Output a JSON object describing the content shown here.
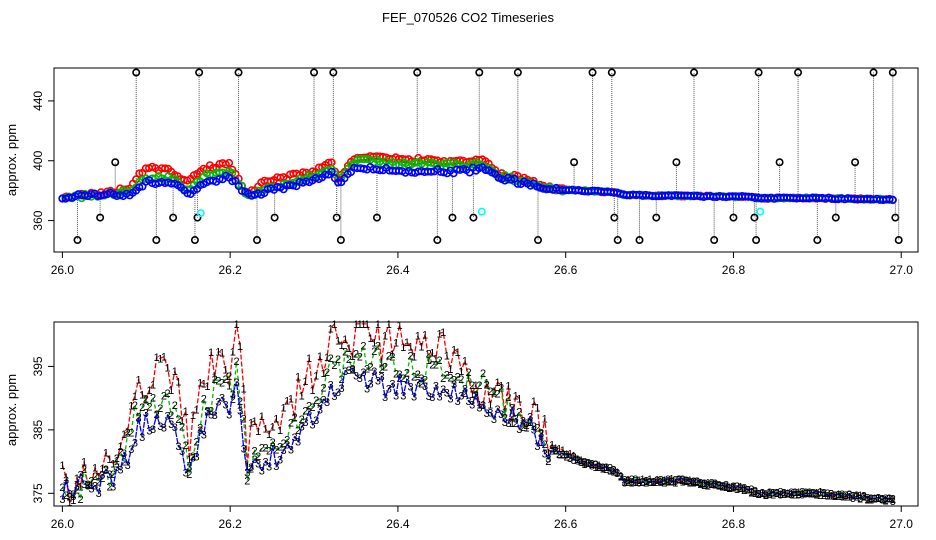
{
  "title": "FEF_070526  CO2 Timeseries",
  "colors": {
    "c1": "#ff0000",
    "c2": "#00bb00",
    "c3": "#0000ff",
    "ref": "#000000",
    "flag": "#00ffff",
    "grid": "#888888"
  },
  "chart_data": [
    {
      "type": "scatter",
      "title": "FEF_070526  CO2 Timeseries",
      "xlabel": "",
      "ylabel": "approx. ppm",
      "xlim": [
        25.99,
        27.02
      ],
      "ylim": [
        339,
        462
      ],
      "xticks": [
        "26.0",
        "26.2",
        "26.4",
        "26.6",
        "26.8",
        "27.0"
      ],
      "yticks": [
        "360",
        "400",
        "440"
      ],
      "anchors": {
        "x": [
          26.0,
          26.05,
          26.08,
          26.1,
          26.13,
          26.15,
          26.17,
          26.2,
          26.22,
          26.24,
          26.3,
          26.32,
          26.33,
          26.35,
          26.4,
          26.45,
          26.48,
          26.5,
          26.52,
          26.55,
          26.58,
          26.62,
          26.66,
          26.67,
          26.8,
          26.82,
          26.83,
          26.9,
          26.99
        ],
        "c1": [
          376,
          378,
          382,
          396,
          393,
          386,
          395,
          398,
          378,
          386,
          393,
          399,
          388,
          403,
          401,
          400,
          400,
          401,
          391,
          388,
          382,
          380,
          379,
          377,
          376,
          376,
          375,
          375,
          374
        ],
        "c2": [
          376,
          377,
          380,
          389,
          388,
          380,
          390,
          393,
          377,
          380,
          390,
          396,
          386,
          401,
          398,
          398,
          397,
          398,
          390,
          386,
          381,
          380,
          379,
          377,
          376,
          376,
          375,
          375,
          374
        ],
        "c3": [
          376,
          377,
          378,
          386,
          385,
          378,
          386,
          389,
          377,
          379,
          387,
          392,
          385,
          396,
          393,
          393,
          393,
          395,
          389,
          385,
          381,
          380,
          379,
          377,
          376,
          376,
          375,
          375,
          374
        ]
      },
      "ref_spikes": [
        {
          "x": 26.005,
          "high": 376,
          "low": 376
        },
        {
          "x": 26.018,
          "high": 347,
          "low": 347
        },
        {
          "x": 26.045,
          "high": 362,
          "low": 362
        },
        {
          "x": 26.063,
          "high": 399,
          "low": 399
        },
        {
          "x": 26.088,
          "high": 459,
          "low": 459
        },
        {
          "x": 26.112,
          "high": 347,
          "low": 347
        },
        {
          "x": 26.132,
          "high": 362,
          "low": 362
        },
        {
          "x": 26.158,
          "high": 347,
          "low": 347
        },
        {
          "x": 26.161,
          "high": 362,
          "low": 362
        },
        {
          "x": 26.163,
          "high": 459,
          "low": 459
        },
        {
          "x": 26.21,
          "high": 459,
          "low": 459
        },
        {
          "x": 26.232,
          "high": 347,
          "low": 347
        },
        {
          "x": 26.253,
          "high": 362,
          "low": 362
        },
        {
          "x": 26.3,
          "high": 459,
          "low": 459
        },
        {
          "x": 26.323,
          "high": 459,
          "low": 459
        },
        {
          "x": 26.327,
          "high": 362,
          "low": 362
        },
        {
          "x": 26.332,
          "high": 347,
          "low": 347
        },
        {
          "x": 26.375,
          "high": 362,
          "low": 362
        },
        {
          "x": 26.423,
          "high": 459,
          "low": 459
        },
        {
          "x": 26.447,
          "high": 347,
          "low": 347
        },
        {
          "x": 26.465,
          "high": 362,
          "low": 362
        },
        {
          "x": 26.49,
          "high": 362,
          "low": 362
        },
        {
          "x": 26.497,
          "high": 459,
          "low": 459
        },
        {
          "x": 26.543,
          "high": 459,
          "low": 459
        },
        {
          "x": 26.567,
          "high": 347,
          "low": 347
        },
        {
          "x": 26.61,
          "high": 399,
          "low": 399
        },
        {
          "x": 26.632,
          "high": 459,
          "low": 459
        },
        {
          "x": 26.655,
          "high": 459,
          "low": 459
        },
        {
          "x": 26.658,
          "high": 362,
          "low": 362
        },
        {
          "x": 26.662,
          "high": 347,
          "low": 347
        },
        {
          "x": 26.688,
          "high": 347,
          "low": 347
        },
        {
          "x": 26.708,
          "high": 362,
          "low": 362
        },
        {
          "x": 26.732,
          "high": 399,
          "low": 399
        },
        {
          "x": 26.753,
          "high": 459,
          "low": 459
        },
        {
          "x": 26.777,
          "high": 347,
          "low": 347
        },
        {
          "x": 26.8,
          "high": 362,
          "low": 362
        },
        {
          "x": 26.825,
          "high": 362,
          "low": 362
        },
        {
          "x": 26.827,
          "high": 347,
          "low": 347
        },
        {
          "x": 26.83,
          "high": 459,
          "low": 459
        },
        {
          "x": 26.855,
          "high": 399,
          "low": 399
        },
        {
          "x": 26.877,
          "high": 459,
          "low": 459
        },
        {
          "x": 26.9,
          "high": 347,
          "low": 347
        },
        {
          "x": 26.922,
          "high": 362,
          "low": 362
        },
        {
          "x": 26.945,
          "high": 399,
          "low": 399
        },
        {
          "x": 26.967,
          "high": 459,
          "low": 459
        },
        {
          "x": 26.99,
          "high": 459,
          "low": 459
        },
        {
          "x": 26.993,
          "high": 362,
          "low": 362
        },
        {
          "x": 26.997,
          "high": 347,
          "low": 347
        }
      ],
      "flag_points": [
        {
          "x": 26.165,
          "y": 365
        },
        {
          "x": 26.5,
          "y": 366
        },
        {
          "x": 26.832,
          "y": 366
        }
      ]
    },
    {
      "type": "line",
      "title": "",
      "xlabel": "",
      "ylabel": "approx. ppm",
      "xlim": [
        25.99,
        27.02
      ],
      "ylim": [
        373,
        402
      ],
      "xticks": [
        "26.0",
        "26.2",
        "26.4",
        "26.6",
        "26.8",
        "27.0"
      ],
      "yticks": [
        "375",
        "385",
        "395"
      ],
      "series": [
        {
          "name": "1",
          "label": "1"
        },
        {
          "name": "2",
          "label": "2"
        },
        {
          "name": "3",
          "label": "3"
        }
      ],
      "anchors": {
        "x": [
          26.0,
          26.05,
          26.07,
          26.09,
          26.1,
          26.12,
          26.14,
          26.15,
          26.17,
          26.19,
          26.2,
          26.21,
          26.22,
          26.24,
          26.27,
          26.3,
          26.32,
          26.35,
          26.38,
          26.42,
          26.46,
          26.5,
          26.53,
          26.56,
          26.58,
          26.62,
          26.66,
          26.67,
          26.74,
          26.8,
          26.82,
          26.83,
          26.9,
          26.99
        ],
        "s1": [
          376,
          378,
          383,
          392,
          393,
          396,
          391,
          382,
          393,
          398,
          395,
          400,
          382,
          385,
          389,
          395,
          399,
          400,
          399,
          398,
          397,
          392,
          390,
          388,
          383,
          380,
          378.5,
          377,
          377,
          376,
          375.5,
          375,
          375,
          374
        ],
        "s2": [
          376,
          377,
          381,
          388,
          389,
          390,
          386,
          379,
          389,
          393,
          391,
          395,
          379,
          381,
          386,
          390,
          394,
          397,
          396,
          395,
          394,
          392,
          389,
          387,
          382,
          380,
          378.5,
          377,
          377,
          376,
          375.5,
          375,
          375,
          374
        ],
        "s3": [
          376,
          377,
          379,
          385,
          386,
          387,
          383,
          378,
          386,
          390,
          388,
          392,
          378,
          379,
          383,
          388,
          392,
          394,
          392,
          392,
          391,
          390,
          387,
          385,
          382,
          380,
          378.5,
          377,
          377,
          376,
          375.5,
          375,
          375,
          374
        ]
      },
      "gaps_at": [
        26.665,
        26.825
      ]
    }
  ]
}
